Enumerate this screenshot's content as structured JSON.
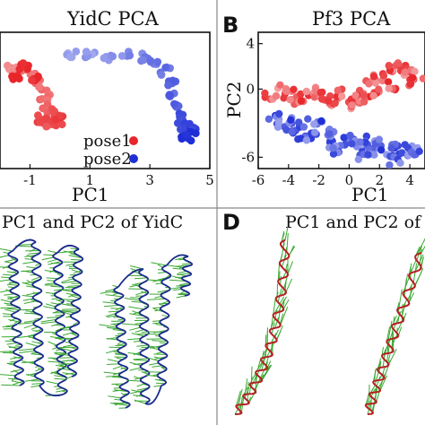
{
  "figure": {
    "panels": [
      {
        "letter": "",
        "title": "YidC PCA"
      },
      {
        "letter": "B",
        "title": "Pf3 PCA"
      },
      {
        "letter": "",
        "title": "PC1 and PC2 of YidC"
      },
      {
        "letter": "D",
        "title": "PC1 and PC2 of"
      }
    ],
    "legend": [
      {
        "label": "pose1",
        "color": "#e8262a"
      },
      {
        "label": "pose2",
        "color": "#1f2fd6"
      }
    ]
  },
  "chart_data": [
    {
      "type": "scatter",
      "title": "YidC PCA",
      "xlabel": "PC1",
      "ylabel": "",
      "x_ticks": [
        "-1",
        "1",
        "3",
        "5"
      ],
      "xlim": [
        -2,
        5
      ],
      "ylim": [
        -3,
        3
      ],
      "legend_position": "bottom-right",
      "series": [
        {
          "name": "pose1",
          "color": "#e8262a",
          "points": [
            [
              -1.6,
              1.4
            ],
            [
              -1.3,
              1.3
            ],
            [
              -1.0,
              1.2
            ],
            [
              -0.8,
              0.9
            ],
            [
              -0.6,
              0.5
            ],
            [
              -0.5,
              0.1
            ],
            [
              -0.4,
              -0.3
            ],
            [
              -0.3,
              -0.6
            ],
            [
              -0.2,
              -0.9
            ],
            [
              -0.4,
              -1.0
            ],
            [
              -0.6,
              -0.8
            ],
            [
              -0.1,
              -1.1
            ],
            [
              0.0,
              -0.8
            ],
            [
              -0.9,
              1.0
            ],
            [
              -1.2,
              1.5
            ],
            [
              -1.5,
              1.1
            ]
          ]
        },
        {
          "name": "pose2",
          "color": "#1f2fd6",
          "points": [
            [
              0.4,
              2.0
            ],
            [
              1.0,
              2.0
            ],
            [
              1.6,
              1.9
            ],
            [
              2.2,
              2.0
            ],
            [
              2.8,
              1.9
            ],
            [
              3.2,
              1.7
            ],
            [
              3.5,
              1.3
            ],
            [
              3.7,
              0.8
            ],
            [
              3.8,
              0.3
            ],
            [
              3.9,
              -0.2
            ],
            [
              4.0,
              -0.7
            ],
            [
              4.1,
              -1.1
            ],
            [
              4.3,
              -1.3
            ],
            [
              4.5,
              -1.2
            ],
            [
              4.4,
              -1.5
            ],
            [
              4.2,
              -1.6
            ]
          ]
        }
      ]
    },
    {
      "type": "scatter",
      "title": "Pf3 PCA",
      "xlabel": "PC1",
      "ylabel": "PC2",
      "x_ticks": [
        "-6",
        "-4",
        "-2",
        "0",
        "2",
        "4"
      ],
      "y_ticks": [
        "4",
        "0",
        "-6"
      ],
      "xlim": [
        -6,
        5
      ],
      "ylim": [
        -7,
        5
      ],
      "series": [
        {
          "name": "pose1",
          "color": "#e8262a",
          "points": [
            [
              -5.2,
              -0.5
            ],
            [
              -4.5,
              0.0
            ],
            [
              -4.0,
              -0.4
            ],
            [
              -3.5,
              -1.0
            ],
            [
              -3.0,
              -0.8
            ],
            [
              -2.5,
              -0.2
            ],
            [
              -2.0,
              -0.5
            ],
            [
              -1.5,
              -1.2
            ],
            [
              -1.0,
              -0.9
            ],
            [
              -0.5,
              -0.4
            ],
            [
              0.0,
              -1.5
            ],
            [
              0.5,
              -1.2
            ],
            [
              1.0,
              -0.8
            ],
            [
              1.5,
              0.5
            ],
            [
              2.0,
              1.0
            ],
            [
              2.5,
              1.5
            ],
            [
              3.0,
              1.8
            ],
            [
              3.5,
              2.0
            ],
            [
              4.0,
              1.6
            ],
            [
              4.5,
              1.2
            ],
            [
              3.8,
              0.7
            ],
            [
              2.8,
              0.3
            ],
            [
              1.8,
              -0.2
            ],
            [
              0.8,
              -0.5
            ]
          ]
        },
        {
          "name": "pose2",
          "color": "#1f2fd6",
          "points": [
            [
              -5.0,
              -2.5
            ],
            [
              -4.5,
              -3.2
            ],
            [
              -4.0,
              -2.8
            ],
            [
              -3.5,
              -3.6
            ],
            [
              -3.0,
              -3.0
            ],
            [
              -2.5,
              -4.0
            ],
            [
              -2.0,
              -3.2
            ],
            [
              -1.5,
              -4.4
            ],
            [
              -1.0,
              -3.8
            ],
            [
              -0.5,
              -4.8
            ],
            [
              0.0,
              -4.2
            ],
            [
              0.5,
              -5.0
            ],
            [
              1.0,
              -4.5
            ],
            [
              1.5,
              -5.5
            ],
            [
              2.0,
              -4.8
            ],
            [
              2.5,
              -5.6
            ],
            [
              3.0,
              -5.0
            ],
            [
              3.5,
              -5.8
            ],
            [
              4.0,
              -5.2
            ],
            [
              4.5,
              -5.5
            ],
            [
              -3.0,
              -4.5
            ],
            [
              -1.0,
              -5.5
            ],
            [
              1.0,
              -6.0
            ],
            [
              3.0,
              -6.3
            ]
          ]
        }
      ]
    }
  ]
}
